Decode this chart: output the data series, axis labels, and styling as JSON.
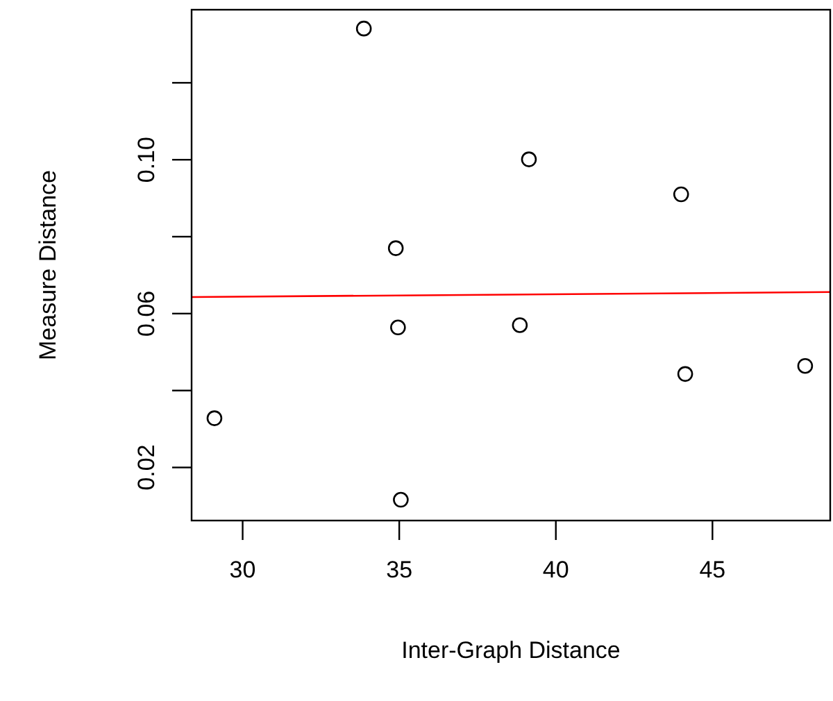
{
  "chart_data": {
    "type": "scatter",
    "xlabel": "Inter-Graph Distance",
    "ylabel": "Measure Distance",
    "xlim": [
      28.37,
      48.76
    ],
    "xticks": [
      30,
      35,
      40,
      45
    ],
    "ylim": [
      0.0062,
      0.139
    ],
    "yticks": [
      {
        "value": 0.02,
        "label": "0.02"
      },
      {
        "value": 0.04,
        "label": null
      },
      {
        "value": 0.06,
        "label": "0.06"
      },
      {
        "value": 0.08,
        "label": null
      },
      {
        "value": 0.1,
        "label": "0.10"
      },
      {
        "value": 0.12,
        "label": null
      }
    ],
    "marker": "circle",
    "grid": false,
    "series": [
      {
        "color": "#000000",
        "x": [
          29.1,
          33.87,
          34.89,
          34.96,
          35.05,
          38.85,
          39.14,
          44.0,
          44.13,
          47.96
        ],
        "values": [
          0.0328,
          0.1341,
          0.077,
          0.0564,
          0.0116,
          0.057,
          0.1001,
          0.091,
          0.0443,
          0.0464
        ]
      },
      {
        "type": "line",
        "color": "#ff0000",
        "marker": "none",
        "x": [
          28.37,
          48.76
        ],
        "values": [
          0.0643,
          0.0656
        ]
      }
    ]
  }
}
